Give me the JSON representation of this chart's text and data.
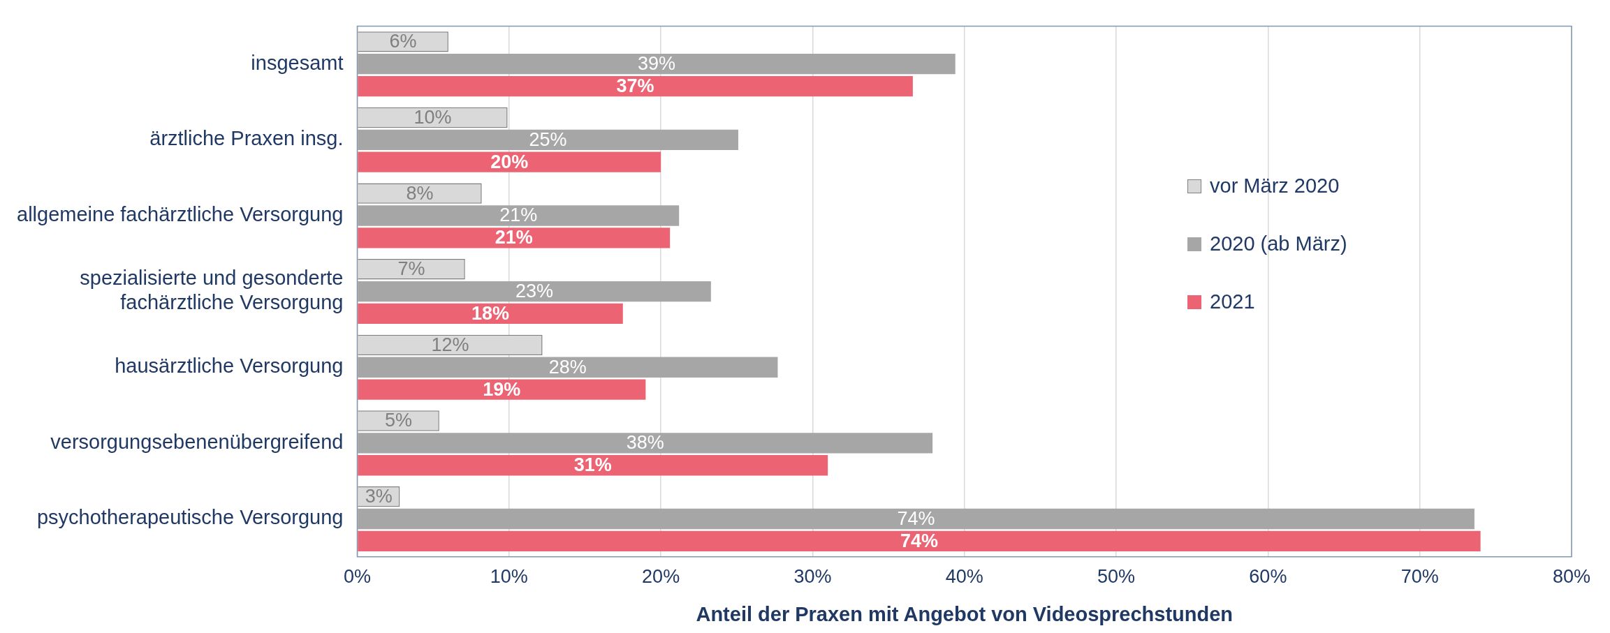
{
  "chart_data": {
    "type": "bar",
    "orientation": "horizontal",
    "xlabel": "Anteil der Praxen mit Angebot von Videosprechstunden",
    "categories": [
      "insgesamt",
      "ärztliche Praxen insg.",
      "allgemeine fachärztliche Versorgung",
      "spezialisierte und gesonderte fachärztliche Versorgung",
      "hausärztliche Versorgung",
      "versorgungsebenenübergreifend",
      "psychotherapeutische Versorgung"
    ],
    "series": [
      {
        "name": "vor März 2020",
        "color": "#d9d9d9",
        "values": [
          6.0,
          9.9,
          8.2,
          7.1,
          12.2,
          5.4,
          2.8
        ],
        "value_labels": [
          "6%",
          "10%",
          "8%",
          "7%",
          "12%",
          "5%",
          "3%"
        ]
      },
      {
        "name": "2020 (ab März)",
        "color": "#a6a6a6",
        "values": [
          39.4,
          25.1,
          21.2,
          23.3,
          27.7,
          37.9,
          73.6
        ],
        "value_labels": [
          "39%",
          "25%",
          "21%",
          "23%",
          "28%",
          "38%",
          "74%"
        ]
      },
      {
        "name": "2021",
        "color": "#ec6473",
        "values": [
          36.6,
          20.0,
          20.6,
          17.5,
          19.0,
          31.0,
          74.0
        ],
        "value_labels": [
          "37%",
          "20%",
          "21%",
          "18%",
          "19%",
          "31%",
          "74%"
        ]
      }
    ],
    "xlim": [
      0,
      80
    ],
    "xticks": [
      {
        "value": 0,
        "label": "0%"
      },
      {
        "value": 10,
        "label": "10%"
      },
      {
        "value": 20,
        "label": "20%"
      },
      {
        "value": 30,
        "label": "30%"
      },
      {
        "value": 40,
        "label": "40%"
      },
      {
        "value": 50,
        "label": "50%"
      },
      {
        "value": 60,
        "label": "60%"
      },
      {
        "value": 70,
        "label": "70%"
      },
      {
        "value": 80,
        "label": "80%"
      }
    ],
    "grid": "x",
    "legend": "right"
  }
}
